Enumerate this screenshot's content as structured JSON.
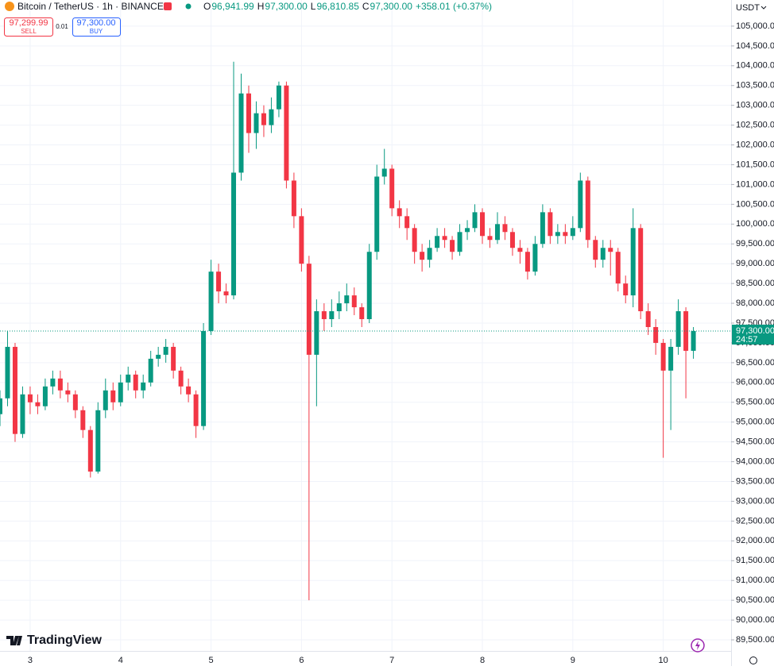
{
  "header": {
    "symbol": "Bitcoin / TetherUS · 1h · BINANCE",
    "ohlc": [
      {
        "key": "O",
        "value": "96,941.99"
      },
      {
        "key": "H",
        "value": "97,300.00"
      },
      {
        "key": "L",
        "value": "96,810.85"
      },
      {
        "key": "C",
        "value": "97,300.00"
      }
    ],
    "change": "+358.01 (+0.37%)",
    "sell_price": "97,299.99",
    "sell_label": "SELL",
    "spread": "0.01",
    "buy_price": "97,300.00",
    "buy_label": "BUY",
    "currency": "USDT",
    "logo": "TradingView"
  },
  "chart_data": {
    "type": "candlestick",
    "up_color": "#089981",
    "down_color": "#f23645",
    "grid": true,
    "xlim": [
      0,
      97
    ],
    "xticks": [
      {
        "value": 4,
        "label": "3"
      },
      {
        "value": 16,
        "label": "4"
      },
      {
        "value": 28,
        "label": "5"
      },
      {
        "value": 40,
        "label": "6"
      },
      {
        "value": 52,
        "label": "7"
      },
      {
        "value": 64,
        "label": "8"
      },
      {
        "value": 76,
        "label": "9"
      },
      {
        "value": 88,
        "label": "10"
      }
    ],
    "ylim": [
      89220,
      105660
    ],
    "yticks": [
      {
        "value": 89500,
        "label": "89,500.00"
      },
      {
        "value": 90000,
        "label": "90,000.00"
      },
      {
        "value": 90500,
        "label": "90,500.00"
      },
      {
        "value": 91000,
        "label": "91,000.00"
      },
      {
        "value": 91500,
        "label": "91,500.00"
      },
      {
        "value": 92000,
        "label": "92,000.00"
      },
      {
        "value": 92500,
        "label": "92,500.00"
      },
      {
        "value": 93000,
        "label": "93,000.00"
      },
      {
        "value": 93500,
        "label": "93,500.00"
      },
      {
        "value": 94000,
        "label": "94,000.00"
      },
      {
        "value": 94500,
        "label": "94,500.00"
      },
      {
        "value": 95000,
        "label": "95,000.00"
      },
      {
        "value": 95500,
        "label": "95,500.00"
      },
      {
        "value": 96000,
        "label": "96,000.00"
      },
      {
        "value": 96500,
        "label": "96,500.00"
      },
      {
        "value": 97000,
        "label": "97,000.00"
      },
      {
        "value": 97500,
        "label": "97,500.00"
      },
      {
        "value": 98000,
        "label": "98,000.00"
      },
      {
        "value": 98500,
        "label": "98,500.00"
      },
      {
        "value": 99000,
        "label": "99,000.00"
      },
      {
        "value": 99500,
        "label": "99,500.00"
      },
      {
        "value": 100000,
        "label": "100,000.00"
      },
      {
        "value": 100500,
        "label": "100,500.00"
      },
      {
        "value": 101000,
        "label": "101,000.00"
      },
      {
        "value": 101500,
        "label": "101,500.00"
      },
      {
        "value": 102000,
        "label": "102,000.00"
      },
      {
        "value": 102500,
        "label": "102,500.00"
      },
      {
        "value": 103000,
        "label": "103,000.00"
      },
      {
        "value": 103500,
        "label": "103,500.00"
      },
      {
        "value": 104000,
        "label": "104,000.00"
      },
      {
        "value": 104500,
        "label": "104,500.00"
      },
      {
        "value": 105000,
        "label": "105,000.00"
      }
    ],
    "last_price": {
      "value": 97300,
      "label": "97,300.00"
    },
    "countdown": "24:57",
    "open": [
      95200,
      95600,
      96900,
      94700,
      95700,
      95500,
      95400,
      95900,
      96100,
      95800,
      95700,
      95300,
      94800,
      93750,
      95300,
      95800,
      95500,
      96000,
      96200,
      95800,
      96000,
      96600,
      96700,
      96900,
      96300,
      95900,
      95700,
      94900,
      97300,
      98800,
      98300,
      98200,
      101300,
      103300,
      102300,
      102800,
      102500,
      102900,
      103500,
      101100,
      100200,
      99000,
      96700,
      97800,
      97600,
      97800,
      98000,
      98200,
      97900,
      97600,
      99300,
      101200,
      101400,
      100400,
      100200,
      99900,
      99300,
      99100,
      99400,
      99700,
      99600,
      99300,
      99800,
      99900,
      100300,
      99700,
      99600,
      100000,
      99800,
      99400,
      99300,
      98800,
      99500,
      100300,
      99700,
      99800,
      99700,
      99900,
      101100,
      99600,
      99100,
      99400,
      99300,
      98500,
      98200,
      99900,
      97800,
      97400,
      97000,
      96300,
      96900,
      97800,
      96800
    ],
    "high": [
      95800,
      97300,
      97000,
      95900,
      95900,
      95700,
      96100,
      96300,
      96300,
      96000,
      95800,
      95400,
      94900,
      95500,
      96100,
      96000,
      96200,
      96400,
      96300,
      96200,
      96800,
      96900,
      97100,
      97000,
      96400,
      96100,
      95800,
      97500,
      99100,
      99000,
      98500,
      104100,
      103800,
      103500,
      103100,
      103000,
      103200,
      103600,
      103600,
      101300,
      100400,
      99200,
      98100,
      98000,
      98100,
      98300,
      98500,
      98400,
      98000,
      99500,
      101500,
      101900,
      101500,
      100600,
      100400,
      100000,
      99500,
      99600,
      99900,
      99900,
      99700,
      100000,
      100100,
      100500,
      100400,
      99900,
      100300,
      100200,
      99900,
      99600,
      99400,
      99700,
      100500,
      100400,
      100000,
      100000,
      100200,
      101300,
      101200,
      99700,
      99600,
      99600,
      99400,
      98700,
      100400,
      100000,
      98000,
      97600,
      97100,
      97100,
      98100,
      97900,
      97400
    ],
    "low": [
      94900,
      95400,
      94500,
      94600,
      95200,
      95200,
      95300,
      95700,
      95600,
      95500,
      95100,
      94600,
      93600,
      93700,
      95100,
      95300,
      95400,
      95800,
      95600,
      95600,
      95900,
      96400,
      96500,
      96100,
      95700,
      95500,
      94600,
      94800,
      97200,
      98000,
      98000,
      98100,
      101100,
      101800,
      101900,
      102200,
      102300,
      102700,
      100900,
      99900,
      98800,
      90500,
      95400,
      97300,
      97400,
      97600,
      97800,
      97700,
      97400,
      97500,
      99100,
      101000,
      100200,
      99900,
      99600,
      99000,
      98800,
      98900,
      99300,
      99400,
      99100,
      99200,
      99600,
      99800,
      99500,
      99400,
      99500,
      99600,
      99200,
      99000,
      98600,
      98700,
      99400,
      99500,
      99500,
      99500,
      99600,
      99800,
      99400,
      98900,
      98900,
      98700,
      98300,
      98000,
      97900,
      97600,
      97200,
      96700,
      94100,
      94800,
      96700,
      95600,
      96600
    ],
    "close": [
      95600,
      96900,
      94700,
      95700,
      95500,
      95400,
      95900,
      96100,
      95800,
      95700,
      95300,
      94800,
      93750,
      95300,
      95800,
      95500,
      96000,
      96200,
      95800,
      96000,
      96600,
      96700,
      96900,
      96300,
      95900,
      95700,
      94900,
      97300,
      98800,
      98300,
      98200,
      101300,
      103300,
      102300,
      102800,
      102500,
      102900,
      103500,
      101100,
      100200,
      99000,
      96700,
      97800,
      97600,
      97800,
      98000,
      98200,
      97900,
      97600,
      99300,
      101200,
      101400,
      100400,
      100200,
      99900,
      99300,
      99100,
      99400,
      99700,
      99600,
      99300,
      99800,
      99900,
      100300,
      99700,
      99600,
      100000,
      99800,
      99400,
      99300,
      98800,
      99500,
      100300,
      99700,
      99800,
      99700,
      99900,
      101100,
      99600,
      99100,
      99400,
      99300,
      98500,
      98200,
      99900,
      97800,
      97400,
      97000,
      96300,
      96900,
      97800,
      96800,
      97300
    ]
  }
}
